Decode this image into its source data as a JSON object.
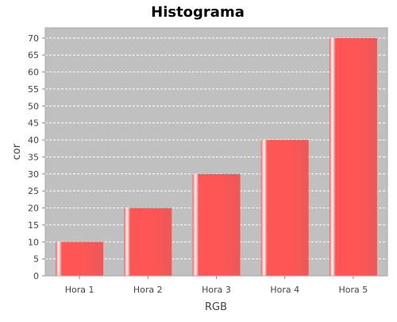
{
  "chart_data": {
    "type": "bar",
    "title": "Histograma",
    "xlabel": "RGB",
    "ylabel": "cor",
    "categories": [
      "Hora 1",
      "Hora 2",
      "Hora 3",
      "Hora 4",
      "Hora 5"
    ],
    "values": [
      10,
      20,
      30,
      40,
      70
    ],
    "ylim": [
      0,
      73
    ],
    "yticks": [
      0,
      5,
      10,
      15,
      20,
      25,
      30,
      35,
      40,
      45,
      50,
      55,
      60,
      65,
      70
    ],
    "grid": true,
    "legend": "none",
    "colors": {
      "bar": "#ff5555",
      "bar_highlight": "#ffffff",
      "bar_edge": "#e85a5a",
      "plot_background": "#c0c0c0",
      "grid": "#ffffff",
      "axis": "#888888"
    }
  }
}
